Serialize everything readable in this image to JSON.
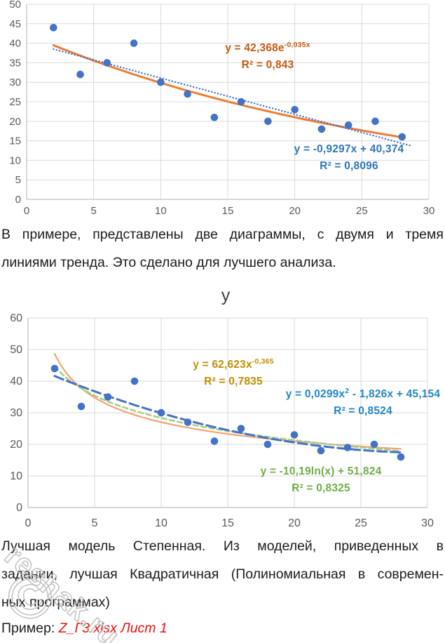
{
  "page": {
    "background": "#ffffff",
    "paragraph1": {
      "lines": [
        "В примере, представлены две диаграммы, с двумя и тремя",
        "линиями тренда. Это сделано для лучшего анализа."
      ]
    },
    "paragraph2": {
      "lines": [
        "Лучшая модель Степенная. Из моделей, приведенных в",
        "задании, лучшая Квадратичная (Полиномиальная в современ-",
        "ных программах)"
      ]
    },
    "example": {
      "label": "Пример:",
      "link": "Z_Г3.xlsx Лист 1",
      "link_color": "#ee0a0a"
    },
    "watermark": {
      "text": "reshak.ru",
      "symbol": "©"
    }
  },
  "chart_data": [
    {
      "type": "scatter",
      "title": "",
      "x": [
        2,
        4,
        6,
        8,
        10,
        12,
        14,
        16,
        18,
        20,
        22,
        24,
        26,
        28
      ],
      "y": [
        44,
        32,
        35,
        40,
        30,
        27,
        21,
        25,
        20,
        23,
        18,
        19,
        20,
        16
      ],
      "xlim": [
        0,
        30
      ],
      "ylim": [
        0,
        50
      ],
      "xticks": [
        0,
        5,
        10,
        15,
        20,
        25,
        30
      ],
      "yticks": [
        0,
        5,
        10,
        15,
        20,
        25,
        30,
        35,
        40,
        45,
        50
      ],
      "grid": true,
      "legend": "none",
      "point_color": "#4472C4",
      "axis_color": "#bfbfbf",
      "grid_color": "#d9d9d9",
      "tick_color": "#595959",
      "trendlines": [
        {
          "kind": "exponential",
          "a": 42.368,
          "b": -0.035,
          "range": [
            2,
            28
          ],
          "color": "#ED7D31",
          "width": 3,
          "dash": "",
          "equation": {
            "pre": "y = 42,368e",
            "sup": "-0,035x",
            "post": "",
            "r2": "R² = 0,843",
            "color": "#C55A11"
          }
        },
        {
          "kind": "linear",
          "a": -0.9297,
          "b": 40.374,
          "range": [
            2,
            28.8
          ],
          "color": "#4472C4",
          "width": 2.4,
          "dash": "0.1 4.4",
          "equation": {
            "pre": "y = -0,9297x + 40,374",
            "sup": "",
            "post": "",
            "r2": "R² = 0,8096",
            "color": "#2E75B6"
          }
        }
      ]
    },
    {
      "type": "scatter",
      "title": "y",
      "x": [
        2,
        4,
        6,
        8,
        10,
        12,
        14,
        16,
        18,
        20,
        22,
        24,
        26,
        28
      ],
      "y": [
        44,
        32,
        35,
        40,
        30,
        27,
        21,
        25,
        20,
        23,
        18,
        19,
        20,
        16
      ],
      "xlim": [
        0,
        30
      ],
      "ylim": [
        0,
        60
      ],
      "xticks": [
        0,
        5,
        10,
        15,
        20,
        25,
        30
      ],
      "yticks": [
        0,
        10,
        20,
        30,
        40,
        50,
        60
      ],
      "grid": true,
      "legend": "none",
      "point_color": "#4472C4",
      "axis_color": "#bfbfbf",
      "grid_color": "#d9d9d9",
      "tick_color": "#595959",
      "title_color": "#404040",
      "trendlines": [
        {
          "kind": "power",
          "a": 62.623,
          "b": -0.365,
          "range": [
            2,
            28
          ],
          "color": "#F2A470",
          "width": 2.2,
          "dash": "",
          "equation": {
            "pre": "y = 62,623x",
            "sup": "-0,365",
            "post": "",
            "r2": "R² = 0,7835",
            "color": "#BF9000"
          }
        },
        {
          "kind": "log",
          "a": -10.19,
          "b": 51.824,
          "range": [
            2,
            28
          ],
          "color": "#A6CE8C",
          "width": 2.6,
          "dash": "7 4.5",
          "equation": {
            "pre": "y = -10,19ln(x) + 51,824",
            "sup": "",
            "post": "",
            "r2": "R² = 0,8325",
            "color": "#70AD47"
          }
        },
        {
          "kind": "poly2",
          "a": 0.0299,
          "b": -1.826,
          "c": 45.154,
          "range": [
            2,
            28
          ],
          "color": "#4472C4",
          "width": 3,
          "dash": "13 6",
          "equation": {
            "pre": "y = 0,0299x",
            "sup": "2",
            "post": " - 1,826x + 45,154",
            "r2": "R² = 0,8524",
            "color": "#2187C6"
          }
        }
      ]
    }
  ]
}
